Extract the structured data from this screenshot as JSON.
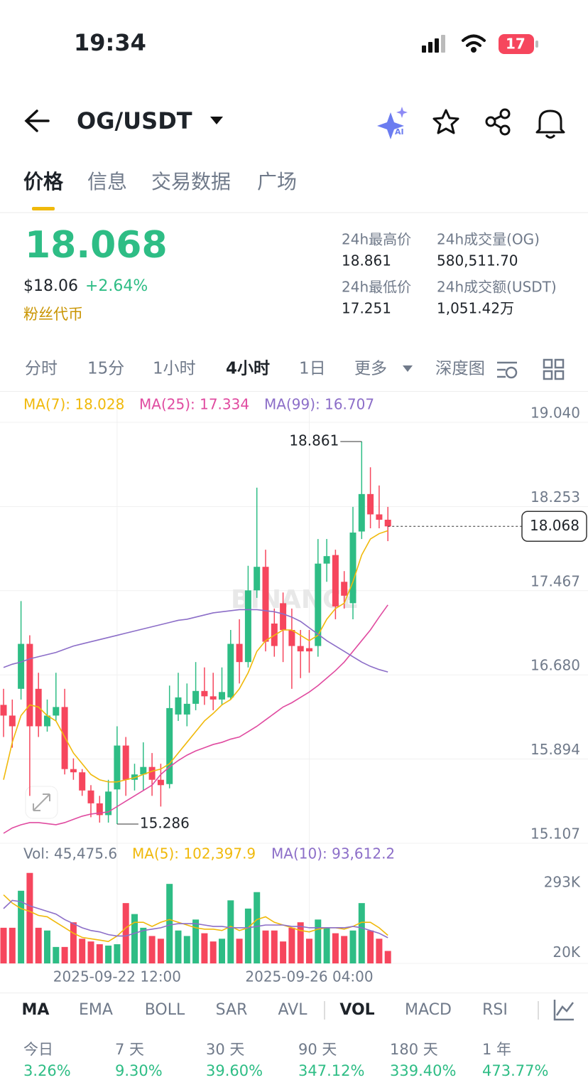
{
  "status_bar": {
    "time": "19:34",
    "battery": "17"
  },
  "header": {
    "pair": "OG/USDT"
  },
  "tabs": [
    "价格",
    "信息",
    "交易数据",
    "广场"
  ],
  "price": {
    "last": "18.068",
    "usd": "$18.06",
    "change": "+2.64%",
    "tag": "粉丝代币"
  },
  "stats": [
    {
      "label": "24h最高价",
      "value": "18.861"
    },
    {
      "label": "24h成交量(OG)",
      "value": "580,511.70"
    },
    {
      "label": "24h最低价",
      "value": "17.251"
    },
    {
      "label": "24h成交额(USDT)",
      "value": "1,051.42万"
    }
  ],
  "intervals": [
    "分时",
    "15分",
    "1小时",
    "4小时",
    "1日",
    "更多",
    "深度图"
  ],
  "chart_data": [
    {
      "type": "candlestick",
      "watermark": "BINANCE",
      "grid": true,
      "up_color": "#2ebd85",
      "down_color": "#f6465d",
      "categories": [
        null,
        null,
        null,
        null,
        null,
        null,
        null,
        null,
        null,
        null,
        null,
        null,
        null,
        "2025-09-22 12:00",
        null,
        null,
        null,
        null,
        null,
        null,
        null,
        null,
        null,
        null,
        null,
        null,
        null,
        null,
        null,
        null,
        null,
        null,
        null,
        null,
        null,
        "2025-09-26 04:00",
        null,
        null,
        null,
        null,
        null,
        null,
        null,
        null,
        null
      ],
      "open": [
        16.4,
        16.3,
        16.55,
        16.97,
        16.55,
        16.2,
        16.3,
        16.38,
        15.8,
        15.77,
        15.6,
        15.48,
        15.37,
        15.61,
        16.02,
        15.7,
        15.75,
        15.82,
        15.7,
        15.66,
        16.31,
        16.31,
        16.41,
        16.53,
        16.48,
        16.45,
        16.47,
        16.97,
        16.8,
        17.47,
        17.69,
        17.16,
        17.35,
        17.1,
        16.95,
        16.93,
        16.95,
        17.72,
        17.8,
        17.55,
        17.35,
        18.02,
        18.37,
        18.18,
        18.13
      ],
      "high": [
        16.55,
        16.45,
        17.37,
        17.05,
        16.7,
        16.45,
        16.7,
        16.55,
        15.9,
        15.8,
        15.65,
        15.55,
        15.7,
        16.2,
        16.1,
        15.85,
        16.05,
        15.95,
        15.85,
        16.58,
        16.7,
        16.6,
        16.8,
        16.75,
        16.7,
        16.75,
        17.1,
        17.2,
        17.7,
        18.43,
        17.85,
        17.3,
        17.45,
        17.3,
        17.1,
        17.1,
        17.95,
        17.95,
        17.85,
        17.65,
        18.25,
        18.861,
        18.62,
        18.45,
        18.25
      ],
      "low": [
        16.1,
        16.0,
        16.45,
        15.55,
        16.1,
        16.15,
        16.25,
        15.75,
        15.7,
        15.55,
        15.35,
        15.3,
        15.3,
        15.286,
        15.55,
        15.6,
        15.6,
        15.55,
        15.45,
        15.62,
        16.25,
        16.2,
        16.35,
        16.4,
        16.35,
        16.4,
        16.45,
        16.6,
        16.75,
        17.4,
        16.9,
        16.85,
        16.8,
        16.55,
        16.65,
        16.7,
        16.85,
        17.55,
        17.2,
        17.3,
        17.2,
        17.95,
        18.05,
        18.05,
        17.93
      ],
      "close": [
        16.3,
        16.2,
        16.97,
        16.2,
        16.2,
        16.3,
        16.38,
        15.8,
        15.77,
        15.6,
        15.48,
        15.37,
        15.59,
        16.02,
        15.7,
        15.75,
        15.82,
        15.7,
        15.65,
        16.37,
        16.47,
        16.41,
        16.53,
        16.48,
        16.45,
        16.52,
        16.97,
        16.8,
        17.47,
        17.69,
        16.99,
        16.95,
        17.1,
        16.95,
        16.9,
        16.9,
        17.72,
        17.79,
        17.32,
        17.42,
        18.01,
        18.37,
        18.18,
        18.13,
        18.068
      ],
      "series": [
        {
          "name": "MA(7): 18.028",
          "color": "#f0b90b",
          "values": [
            15.7,
            16.05,
            16.3,
            16.4,
            16.38,
            16.3,
            16.25,
            16.1,
            15.95,
            15.85,
            15.75,
            15.7,
            15.68,
            15.68,
            15.7,
            15.72,
            15.75,
            15.78,
            15.8,
            15.85,
            15.95,
            16.05,
            16.15,
            16.25,
            16.32,
            16.4,
            16.45,
            16.55,
            16.7,
            16.9,
            17.0,
            17.05,
            17.1,
            17.1,
            17.05,
            17.0,
            17.05,
            17.2,
            17.3,
            17.35,
            17.55,
            17.8,
            17.95,
            18.0,
            18.028
          ]
        },
        {
          "name": "MA(25): 17.334",
          "color": "#e04ba0",
          "values": [
            15.2,
            15.25,
            15.28,
            15.3,
            15.3,
            15.29,
            15.28,
            15.3,
            15.33,
            15.36,
            15.38,
            15.39,
            15.4,
            15.45,
            15.5,
            15.55,
            15.6,
            15.65,
            15.75,
            15.82,
            15.88,
            15.93,
            15.97,
            16.0,
            16.03,
            16.05,
            16.08,
            16.1,
            16.15,
            16.2,
            16.26,
            16.32,
            16.38,
            16.42,
            16.47,
            16.52,
            16.58,
            16.65,
            16.72,
            16.8,
            16.9,
            17.0,
            17.1,
            17.22,
            17.334
          ]
        },
        {
          "name": "MA(99): 16.707",
          "color": "#8c6ec8",
          "values": [
            16.75,
            16.78,
            16.8,
            16.83,
            16.85,
            16.87,
            16.89,
            16.92,
            16.95,
            16.97,
            16.99,
            17.01,
            17.03,
            17.05,
            17.07,
            17.09,
            17.11,
            17.13,
            17.15,
            17.17,
            17.19,
            17.2,
            17.22,
            17.24,
            17.26,
            17.27,
            17.28,
            17.29,
            17.29,
            17.29,
            17.28,
            17.27,
            17.25,
            17.22,
            17.18,
            17.12,
            17.06,
            17.0,
            16.95,
            16.9,
            16.85,
            16.8,
            16.76,
            16.73,
            16.707
          ]
        }
      ],
      "ylim": [
        15.107,
        19.04
      ],
      "yticks": [
        {
          "value": 19.04,
          "label": "19.040"
        },
        18.253,
        17.467,
        {
          "value": 16.68,
          "label": "16.680"
        },
        15.894,
        15.107
      ],
      "max_label": 18.861,
      "min_label": 15.286,
      "last_price": 18.068
    },
    {
      "type": "bar",
      "values": [
        130000,
        130000,
        265000,
        330000,
        130000,
        120000,
        60000,
        60000,
        150000,
        90000,
        80000,
        70000,
        65000,
        70000,
        220000,
        180000,
        130000,
        100000,
        90000,
        290000,
        120000,
        100000,
        160000,
        110000,
        80000,
        90000,
        230000,
        90000,
        200000,
        260000,
        120000,
        120000,
        80000,
        130000,
        150000,
        90000,
        160000,
        130000,
        110000,
        100000,
        120000,
        220000,
        120000,
        90000,
        45475.6
      ],
      "name": "Vol: 45,475.6",
      "series": [
        {
          "name": "MA(5): 102,397.9",
          "color": "#f0b90b",
          "values": [
            250000,
            220000,
            200000,
            190000,
            175000,
            170000,
            150000,
            130000,
            110000,
            95000,
            90000,
            85000,
            80000,
            100000,
            130000,
            150000,
            150000,
            135000,
            150000,
            160000,
            150000,
            140000,
            130000,
            125000,
            125000,
            120000,
            135000,
            120000,
            130000,
            160000,
            170000,
            150000,
            140000,
            130000,
            120000,
            115000,
            125000,
            130000,
            130000,
            125000,
            135000,
            150000,
            150000,
            130000,
            102397.9
          ]
        },
        {
          "name": "MA(10): 93,612.2",
          "color": "#8c6ec8",
          "values": [
            200000,
            230000,
            225000,
            210000,
            200000,
            190000,
            180000,
            160000,
            145000,
            130000,
            120000,
            115000,
            105000,
            100000,
            100000,
            110000,
            120000,
            125000,
            130000,
            140000,
            145000,
            145000,
            145000,
            140000,
            135000,
            135000,
            130000,
            130000,
            130000,
            135000,
            140000,
            140000,
            140000,
            135000,
            135000,
            130000,
            130000,
            130000,
            130000,
            130000,
            135000,
            130000,
            120000,
            110000,
            93612.2
          ]
        }
      ],
      "ylim": [
        0,
        363000
      ],
      "yticks": [
        {
          "value": 293000,
          "label": "293K"
        },
        {
          "value": 20000,
          "label": "20K"
        }
      ]
    }
  ],
  "indicator_tabs": [
    "MA",
    "EMA",
    "BOLL",
    "SAR",
    "AVL",
    "VOL",
    "MACD",
    "RSI"
  ],
  "performance": [
    {
      "label": "今日",
      "value": "3.26%"
    },
    {
      "label": "7 天",
      "value": "9.30%"
    },
    {
      "label": "30 天",
      "value": "39.60%"
    },
    {
      "label": "90 天",
      "value": "347.12%"
    },
    {
      "label": "180 天",
      "value": "339.40%"
    },
    {
      "label": "1 年",
      "value": "473.77%"
    }
  ]
}
